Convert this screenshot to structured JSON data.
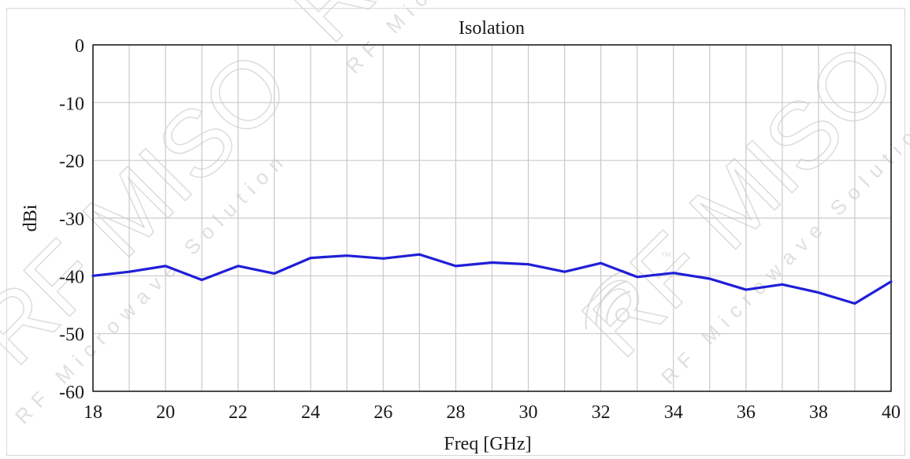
{
  "chart_data": {
    "type": "line",
    "title": "Isolation",
    "xlabel": "Freq [GHz]",
    "ylabel": "dBi",
    "xlim": [
      18,
      40
    ],
    "ylim": [
      -60,
      0
    ],
    "x_ticks": [
      "18",
      "20",
      "22",
      "24",
      "26",
      "28",
      "30",
      "32",
      "34",
      "36",
      "38",
      "40"
    ],
    "y_ticks": [
      "0",
      "-10",
      "-20",
      "-30",
      "-40",
      "-50",
      "-60"
    ],
    "grid": true,
    "series": [
      {
        "color": "#1f1fd8",
        "x": [
          18,
          19,
          20,
          21,
          22,
          23,
          24,
          25,
          26,
          27,
          28,
          29,
          30,
          31,
          32,
          33,
          34,
          35,
          36,
          37,
          38,
          39,
          40
        ],
        "y": [
          -40.0,
          -39.3,
          -38.3,
          -40.7,
          -38.3,
          -39.6,
          -36.9,
          -36.5,
          -37.0,
          -36.3,
          -38.3,
          -37.7,
          -38.0,
          -39.3,
          -37.8,
          -40.2,
          -39.5,
          -40.5,
          -42.4,
          -41.5,
          -42.9,
          -44.8,
          -41.0
        ]
      }
    ]
  },
  "watermark": {
    "brand": "RF MISO",
    "tagline": "RF Microwave Solution",
    "tm": "™",
    "color": "#d9d9d9"
  }
}
